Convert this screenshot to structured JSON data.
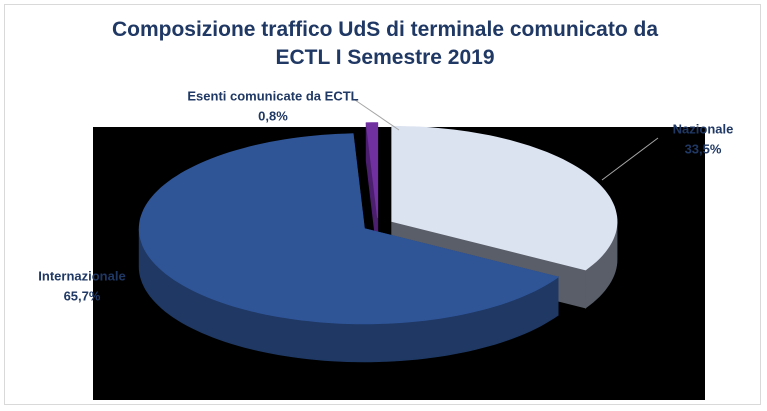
{
  "chart_data": {
    "type": "pie3d",
    "title": "Composizione traffico UdS di terminale comunicato da ECTL  I Semestre 2019",
    "categories": [
      "Nazionale",
      "Internazionale",
      "Esenti comunicate da ECTL"
    ],
    "values": [
      33.5,
      65.7,
      0.8
    ],
    "value_labels": [
      "33,5%",
      "65,7%",
      "0,8%"
    ],
    "colors": [
      "#dce3f0",
      "#2f5597",
      "#7030a0"
    ],
    "side_colors": [
      "#595e69",
      "#1f3864",
      "#4b1f6e"
    ]
  }
}
